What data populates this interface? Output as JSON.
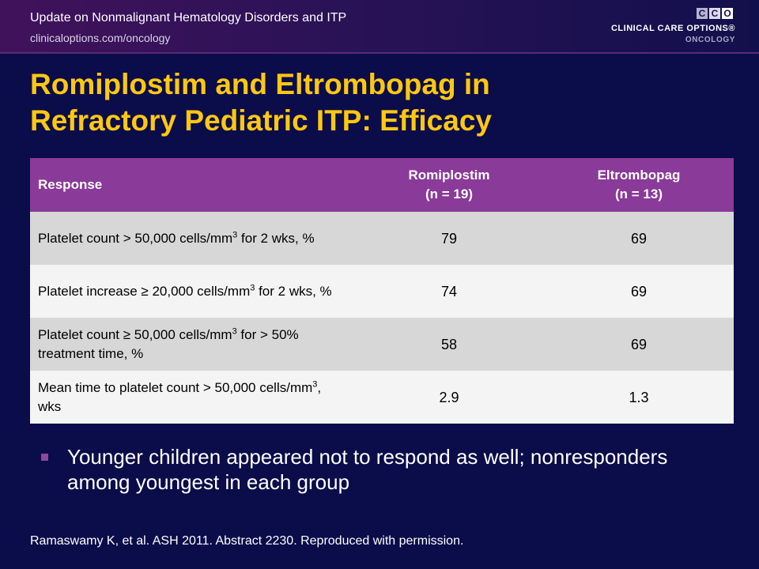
{
  "header": {
    "series_title": "Update on Nonmalignant Hematology Disorders and ITP",
    "url": "clinicaloptions.com/oncology"
  },
  "logo": {
    "letters": [
      "C",
      "C",
      "O"
    ],
    "name": "CLINICAL CARE OPTIONS®",
    "sub": "ONCOLOGY",
    "colors": {
      "box1": "#b9b2cf",
      "box2": "#ded9ea",
      "box3": "#ffffff"
    }
  },
  "title": {
    "line1": "Romiplostim and Eltrombopag in",
    "line2": "Refractory Pediatric ITP: Efficacy"
  },
  "table": {
    "header": {
      "response": "Response",
      "col1_line1": "Romiplostim",
      "col1_line2": "(n = 19)",
      "col2_line1": "Eltrombopag",
      "col2_line2": "(n = 13)"
    },
    "rows": [
      {
        "label_pre": "Platelet count > 50,000 cells/mm",
        "sup": "3",
        "label_post": " for 2 wks, %",
        "romiplostim": "79",
        "eltrombopag": "69"
      },
      {
        "label_pre": "Platelet increase ≥ 20,000 cells/mm",
        "sup": "3",
        "label_post": " for 2 wks, %",
        "romiplostim": "74",
        "eltrombopag": "69"
      },
      {
        "label_pre": "Platelet count ≥ 50,000 cells/mm",
        "sup": "3",
        "label_post": " for > 50% treatment time, %",
        "romiplostim": "58",
        "eltrombopag": "69"
      },
      {
        "label_pre": "Mean time to platelet count > 50,000 cells/mm",
        "sup": "3",
        "label_post": ", wks",
        "romiplostim": "2.9",
        "eltrombopag": "1.3"
      }
    ]
  },
  "bullet": {
    "text": "Younger children appeared not to respond as well; nonresponders among youngest in each group"
  },
  "citation": "Ramaswamy K, et al. ASH 2011. Abstract 2230. Reproduced with permission.",
  "colors": {
    "background": "#0b0c4a",
    "title": "#fec810",
    "table_header": "#8a3a98",
    "row_odd": "#d7d7d7",
    "row_even": "#f4f4f4"
  }
}
